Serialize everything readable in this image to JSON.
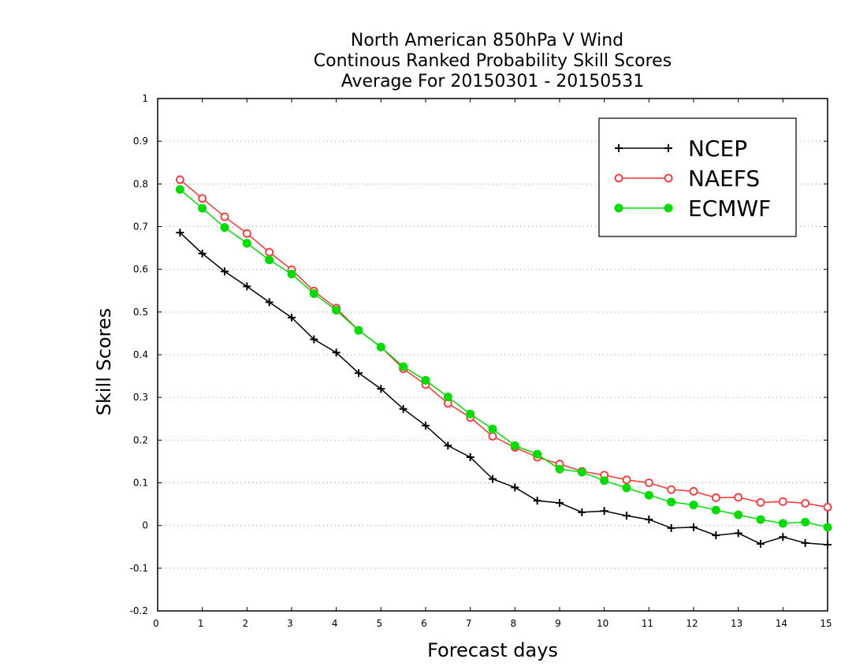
{
  "chart_data": {
    "type": "line",
    "title_lines": [
      "North American 850hPa V Wind",
      "Continous Ranked Probability Skill Scores",
      "Average For 20150301 - 20150531"
    ],
    "xlabel": "Forecast days",
    "ylabel": "Skill Scores",
    "xlim": [
      0,
      15
    ],
    "ylim": [
      -0.2,
      1
    ],
    "x_ticks": [
      0,
      1,
      2,
      3,
      4,
      5,
      6,
      7,
      8,
      9,
      10,
      11,
      12,
      13,
      14,
      15
    ],
    "x_tick_labels": [
      "0",
      "1",
      "2",
      "3",
      "4",
      "5",
      "6",
      "7",
      "8",
      "9",
      "10",
      "11",
      "12",
      "13",
      "14",
      "15"
    ],
    "y_ticks": [
      -0.2,
      -0.1,
      0,
      0.1,
      0.2,
      0.3,
      0.4,
      0.5,
      0.6,
      0.7,
      0.8,
      0.9,
      1
    ],
    "y_tick_labels": [
      "-0.2",
      "-0.1",
      "0",
      "0.1",
      "0.2",
      "0.3",
      "0.4",
      "0.5",
      "0.6",
      "0.7",
      "0.8",
      "0.9",
      "1"
    ],
    "grid": "horizontal dotted",
    "legend_position": "top-right",
    "x": [
      0.5,
      1,
      1.5,
      2,
      2.5,
      3,
      3.5,
      4,
      4.5,
      5,
      5.5,
      6,
      6.5,
      7,
      7.5,
      8,
      8.5,
      9,
      9.5,
      10,
      10.5,
      11,
      11.5,
      12,
      12.5,
      13,
      13.5,
      14,
      14.5,
      15
    ],
    "series": [
      {
        "name": "NCEP",
        "color": "#000000",
        "marker": "plus",
        "values": [
          0.686,
          0.637,
          0.595,
          0.56,
          0.523,
          0.487,
          0.436,
          0.405,
          0.357,
          0.32,
          0.273,
          0.234,
          0.187,
          0.16,
          0.109,
          0.089,
          0.058,
          0.053,
          0.031,
          0.034,
          0.023,
          0.014,
          -0.006,
          -0.004,
          -0.023,
          -0.018,
          -0.043,
          -0.027,
          -0.041,
          -0.045
        ]
      },
      {
        "name": "NAEFS",
        "color": "#ff3333",
        "marker": "open-circle",
        "values": [
          0.81,
          0.766,
          0.723,
          0.684,
          0.64,
          0.599,
          0.549,
          0.509,
          0.457,
          0.418,
          0.367,
          0.33,
          0.286,
          0.253,
          0.209,
          0.183,
          0.16,
          0.144,
          0.127,
          0.118,
          0.107,
          0.1,
          0.084,
          0.08,
          0.065,
          0.066,
          0.054,
          0.056,
          0.052,
          0.043
        ]
      },
      {
        "name": "ECMWF",
        "color": "#00dd00",
        "marker": "filled-circle",
        "values": [
          0.787,
          0.743,
          0.698,
          0.661,
          0.622,
          0.589,
          0.543,
          0.504,
          0.457,
          0.418,
          0.372,
          0.34,
          0.301,
          0.261,
          0.226,
          0.187,
          0.167,
          0.132,
          0.125,
          0.105,
          0.088,
          0.071,
          0.055,
          0.048,
          0.036,
          0.025,
          0.014,
          0.005,
          0.008,
          -0.004
        ]
      }
    ]
  }
}
